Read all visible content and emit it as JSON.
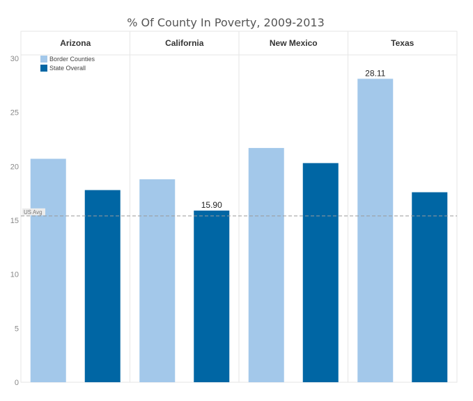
{
  "chart_data": {
    "type": "bar",
    "title": "% Of County In Poverty, 2009-2013",
    "categories": [
      "Arizona",
      "California",
      "New Mexico",
      "Texas"
    ],
    "series": [
      {
        "name": "Border Counties",
        "color": "#a3c8ea",
        "values": [
          20.7,
          18.8,
          21.7,
          28.11
        ]
      },
      {
        "name": "State Overall",
        "color": "#0066a4",
        "values": [
          17.8,
          15.9,
          20.3,
          17.6
        ]
      }
    ],
    "ylim": [
      0,
      30
    ],
    "yticks": [
      "0",
      "5",
      "10",
      "15",
      "20",
      "25",
      "30"
    ],
    "reference_line": {
      "label": "US Avg",
      "value": 15.4
    },
    "data_labels": [
      {
        "category": "California",
        "series": "State Overall",
        "text": "15.90"
      },
      {
        "category": "Texas",
        "series": "Border Counties",
        "text": "28.11"
      }
    ],
    "legend_placement": "top-left",
    "grid": false
  }
}
